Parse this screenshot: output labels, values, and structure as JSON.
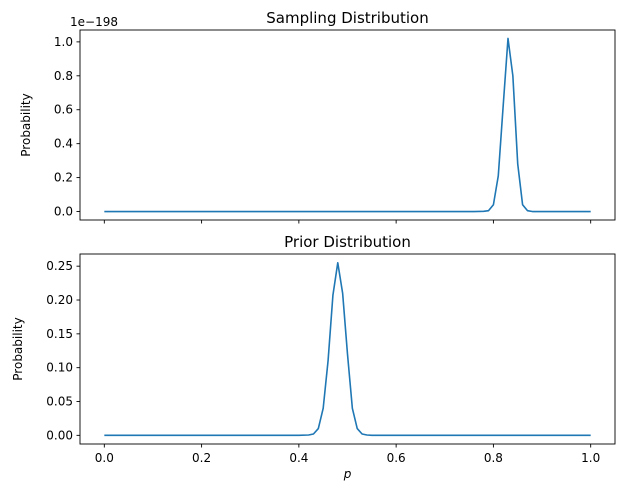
{
  "chart_data": [
    {
      "type": "line",
      "title": "Sampling Distribution",
      "ylabel": "Probability",
      "xlabel": "",
      "y_offset_label": "1e−198",
      "xlim": [
        -0.05,
        1.05
      ],
      "ylim": [
        -0.05,
        1.07
      ],
      "xticks": [
        0.0,
        0.2,
        0.4,
        0.6,
        0.8,
        1.0
      ],
      "xtick_labels_shown": false,
      "yticks": [
        0.0,
        0.2,
        0.4,
        0.6,
        0.8,
        1.0
      ],
      "ytick_labels": [
        "0.0",
        "0.2",
        "0.4",
        "0.6",
        "0.8",
        "1.0"
      ],
      "grid": false,
      "color": "#1f77b4",
      "series": [
        {
          "x": [
            0.0,
            0.1,
            0.2,
            0.3,
            0.4,
            0.5,
            0.6,
            0.7,
            0.76,
            0.78,
            0.79,
            0.8,
            0.81,
            0.82,
            0.83,
            0.84,
            0.85,
            0.86,
            0.87,
            0.88,
            0.9,
            0.95,
            1.0
          ],
          "values": [
            0,
            0,
            0,
            0,
            0,
            0,
            0,
            0,
            0,
            0.001,
            0.005,
            0.04,
            0.21,
            0.62,
            1.02,
            0.8,
            0.28,
            0.04,
            0.005,
            0,
            0,
            0,
            0
          ]
        }
      ]
    },
    {
      "type": "line",
      "title": "Prior Distribution",
      "ylabel": "Probability",
      "xlabel": "p",
      "xlim": [
        -0.05,
        1.05
      ],
      "ylim": [
        -0.0128,
        0.268
      ],
      "xticks": [
        0.0,
        0.2,
        0.4,
        0.6,
        0.8,
        1.0
      ],
      "xtick_labels_shown": true,
      "xtick_labels": [
        "0.0",
        "0.2",
        "0.4",
        "0.6",
        "0.8",
        "1.0"
      ],
      "yticks": [
        0.0,
        0.05,
        0.1,
        0.15,
        0.2,
        0.25
      ],
      "ytick_labels": [
        "0.00",
        "0.05",
        "0.10",
        "0.15",
        "0.20",
        "0.25"
      ],
      "grid": false,
      "color": "#1f77b4",
      "series": [
        {
          "x": [
            0.0,
            0.1,
            0.2,
            0.3,
            0.4,
            0.42,
            0.43,
            0.44,
            0.45,
            0.46,
            0.47,
            0.48,
            0.49,
            0.5,
            0.51,
            0.52,
            0.53,
            0.54,
            0.55,
            0.6,
            0.7,
            0.8,
            0.9,
            1.0
          ],
          "values": [
            0,
            0,
            0,
            0,
            0,
            0.0005,
            0.002,
            0.01,
            0.04,
            0.11,
            0.207,
            0.255,
            0.21,
            0.12,
            0.04,
            0.01,
            0.002,
            0.0005,
            0,
            0,
            0,
            0,
            0,
            0
          ]
        }
      ]
    }
  ]
}
